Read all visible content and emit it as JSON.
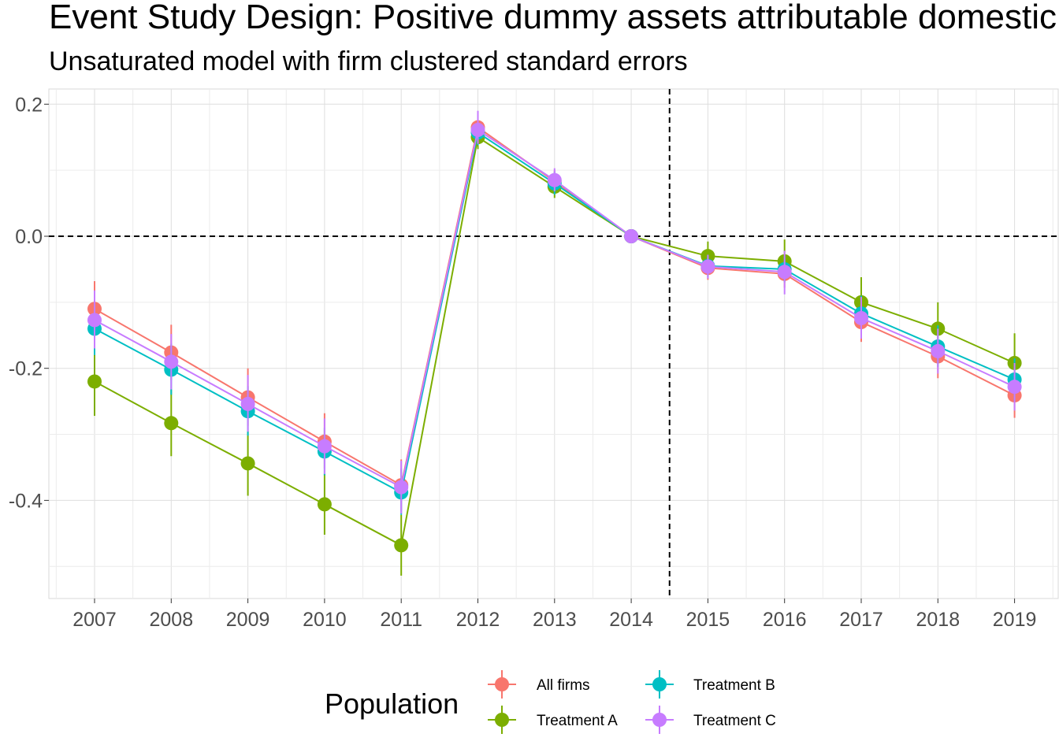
{
  "chart_data": {
    "type": "line",
    "title": "Event Study Design: Positive dummy assets attributable domestic",
    "subtitle": "Unsaturated model with firm clustered standard errors",
    "xlabel": "",
    "ylabel": "",
    "x": [
      "2007",
      "2008",
      "2009",
      "2010",
      "2011",
      "2012",
      "2013",
      "2014",
      "2015",
      "2016",
      "2017",
      "2018",
      "2019"
    ],
    "ylim": [
      -0.545,
      0.225
    ],
    "yticks": [
      0.2,
      0.0,
      -0.2,
      -0.4
    ],
    "ytick_labels": [
      "0.2",
      "0.0",
      "-0.2",
      "-0.4"
    ],
    "grid": true,
    "reference_lines": {
      "horizontal_at": 0.0,
      "vertical_between": [
        "2014",
        "2015"
      ]
    },
    "legend": {
      "title": "Population",
      "placement": "bottom"
    },
    "series": [
      {
        "name": "All firms",
        "color": "#F8766D",
        "values": [
          -0.11,
          -0.176,
          -0.244,
          -0.311,
          -0.377,
          0.165,
          0.083,
          0.0,
          -0.048,
          -0.057,
          -0.13,
          -0.182,
          -0.241
        ],
        "lower": [
          -0.15,
          -0.218,
          -0.287,
          -0.352,
          -0.415,
          0.145,
          0.066,
          0.0,
          -0.066,
          -0.078,
          -0.16,
          -0.215,
          -0.275
        ],
        "upper": [
          -0.068,
          -0.134,
          -0.2,
          -0.268,
          -0.338,
          0.185,
          0.1,
          0.0,
          -0.03,
          -0.035,
          -0.1,
          -0.15,
          -0.207
        ]
      },
      {
        "name": "Treatment A",
        "color": "#7CAE00",
        "values": [
          -0.22,
          -0.283,
          -0.344,
          -0.406,
          -0.468,
          0.15,
          0.075,
          0.0,
          -0.03,
          -0.038,
          -0.1,
          -0.14,
          -0.192
        ],
        "lower": [
          -0.272,
          -0.333,
          -0.393,
          -0.452,
          -0.514,
          0.132,
          0.058,
          0.0,
          -0.052,
          -0.062,
          -0.138,
          -0.178,
          -0.236
        ],
        "upper": [
          -0.168,
          -0.232,
          -0.295,
          -0.36,
          -0.422,
          0.168,
          0.092,
          0.0,
          -0.008,
          -0.005,
          -0.062,
          -0.1,
          -0.147
        ]
      },
      {
        "name": "Treatment B",
        "color": "#00BFC4",
        "values": [
          -0.14,
          -0.202,
          -0.265,
          -0.326,
          -0.388,
          0.157,
          0.08,
          0.0,
          -0.045,
          -0.05,
          -0.117,
          -0.167,
          -0.217
        ],
        "lower": [
          -0.18,
          -0.24,
          -0.302,
          -0.362,
          -0.422,
          0.138,
          0.063,
          0.0,
          -0.062,
          -0.07,
          -0.145,
          -0.198,
          -0.25
        ],
        "upper": [
          -0.1,
          -0.163,
          -0.227,
          -0.29,
          -0.352,
          0.176,
          0.098,
          0.0,
          -0.028,
          -0.03,
          -0.09,
          -0.135,
          -0.185
        ]
      },
      {
        "name": "Treatment C",
        "color": "#C77CFF",
        "values": [
          -0.127,
          -0.19,
          -0.254,
          -0.318,
          -0.38,
          0.161,
          0.085,
          0.0,
          -0.046,
          -0.054,
          -0.124,
          -0.174,
          -0.228
        ],
        "lower": [
          -0.17,
          -0.232,
          -0.296,
          -0.36,
          -0.42,
          0.14,
          0.068,
          0.0,
          -0.064,
          -0.088,
          -0.155,
          -0.208,
          -0.264
        ],
        "upper": [
          -0.082,
          -0.148,
          -0.21,
          -0.276,
          -0.34,
          0.19,
          0.103,
          0.0,
          -0.028,
          -0.022,
          -0.092,
          -0.14,
          -0.192
        ]
      }
    ]
  }
}
